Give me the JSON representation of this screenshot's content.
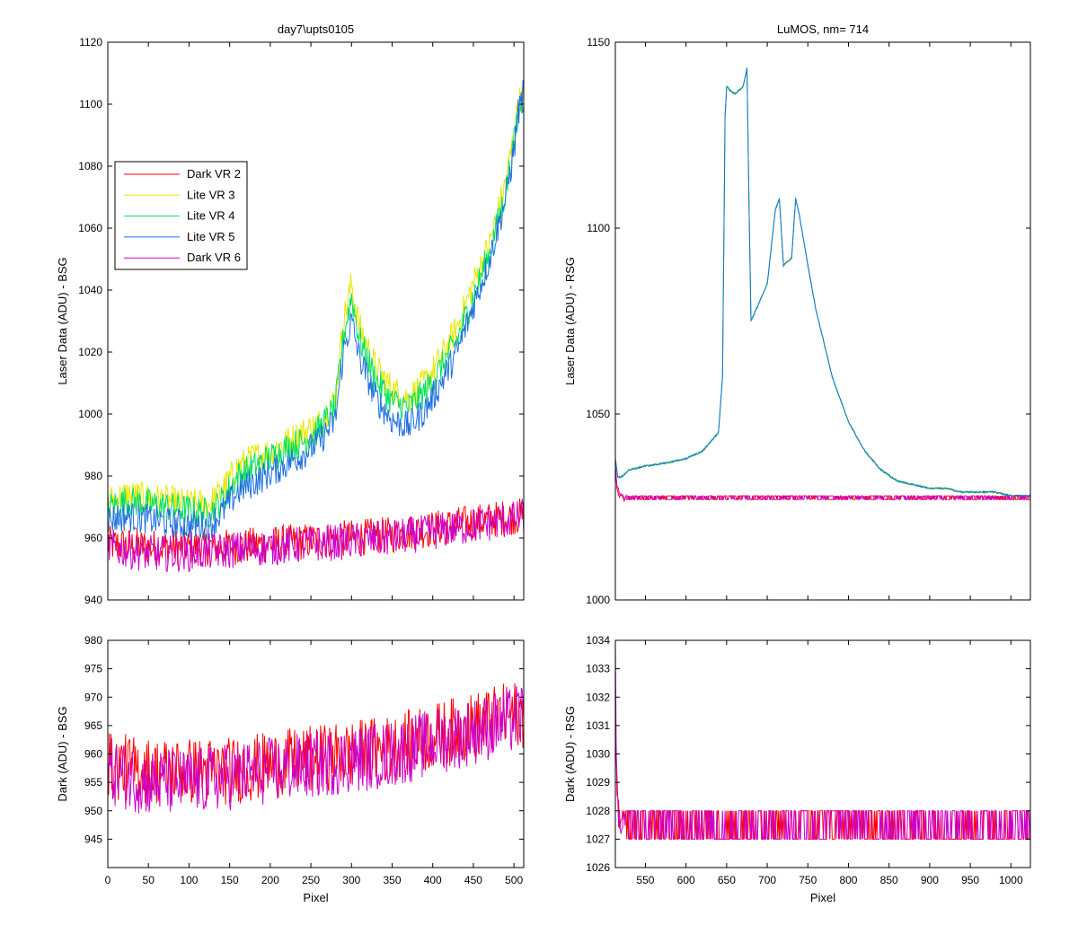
{
  "figure": {
    "background": "#ffffff"
  },
  "chart_data": [
    {
      "id": "bsg_laser",
      "type": "line",
      "title": "day7\\upts0105",
      "xlabel": "",
      "ylabel": "Laser Data (ADU) - BSG",
      "xlim": [
        0,
        512
      ],
      "ylim": [
        940,
        1120
      ],
      "xticks": [
        0,
        50,
        100,
        150,
        200,
        250,
        300,
        350,
        400,
        450,
        500
      ],
      "yticks": [
        940,
        960,
        980,
        1000,
        1020,
        1040,
        1060,
        1080,
        1100,
        1120
      ],
      "show_xtick_labels": false,
      "legend": {
        "placement": "left"
      },
      "series": [
        {
          "name": "Dark VR 2",
          "color": "#ff0000",
          "x": [
            0,
            50,
            100,
            150,
            200,
            250,
            300,
            350,
            400,
            450,
            500,
            512
          ],
          "y": [
            958,
            957,
            957,
            957,
            958,
            959,
            960,
            961,
            963,
            965,
            967,
            967
          ]
        },
        {
          "name": "Lite VR 3",
          "color": "#e8e800",
          "x": [
            0,
            25,
            50,
            75,
            100,
            125,
            140,
            160,
            180,
            200,
            220,
            240,
            260,
            280,
            290,
            300,
            310,
            330,
            350,
            370,
            390,
            410,
            430,
            450,
            470,
            490,
            500,
            505,
            512
          ],
          "y": [
            972,
            974,
            973,
            972,
            971,
            971,
            975,
            983,
            986,
            988,
            991,
            994,
            997,
            1005,
            1030,
            1042,
            1028,
            1015,
            1008,
            1005,
            1010,
            1018,
            1028,
            1042,
            1055,
            1075,
            1090,
            1100,
            1103
          ]
        },
        {
          "name": "Lite VR 4",
          "color": "#00e060",
          "x": [
            0,
            25,
            50,
            75,
            100,
            125,
            140,
            160,
            180,
            200,
            220,
            240,
            260,
            280,
            290,
            300,
            310,
            330,
            350,
            370,
            390,
            410,
            430,
            450,
            470,
            490,
            500,
            505,
            512
          ],
          "y": [
            970,
            972,
            971,
            970,
            969,
            968,
            972,
            980,
            983,
            986,
            989,
            991,
            995,
            1002,
            1025,
            1038,
            1024,
            1011,
            1004,
            1002,
            1007,
            1015,
            1024,
            1038,
            1052,
            1072,
            1087,
            1098,
            1102
          ]
        },
        {
          "name": "Lite VR 5",
          "color": "#1e6fe0",
          "x": [
            0,
            25,
            50,
            75,
            100,
            125,
            140,
            160,
            180,
            200,
            220,
            240,
            260,
            280,
            290,
            300,
            310,
            330,
            350,
            370,
            390,
            410,
            430,
            450,
            470,
            490,
            500,
            505,
            512
          ],
          "y": [
            966,
            967,
            966,
            965,
            964,
            964,
            968,
            975,
            978,
            981,
            984,
            987,
            991,
            998,
            1020,
            1030,
            1018,
            1005,
            998,
            996,
            1001,
            1010,
            1020,
            1035,
            1050,
            1070,
            1085,
            1097,
            1104
          ]
        },
        {
          "name": "Dark VR 6",
          "color": "#cc00cc",
          "x": [
            0,
            50,
            100,
            150,
            200,
            250,
            300,
            350,
            400,
            450,
            500,
            512
          ],
          "y": [
            957,
            955,
            955,
            956,
            957,
            958,
            959,
            960,
            962,
            964,
            966,
            967
          ]
        }
      ]
    },
    {
      "id": "rsg_laser",
      "type": "line",
      "title": "LuMOS, nm= 714",
      "xlabel": "",
      "ylabel": "Laser Data (ADU) - RSG",
      "xlim": [
        513,
        1024
      ],
      "ylim": [
        1000,
        1150
      ],
      "xticks": [
        550,
        600,
        650,
        700,
        750,
        800,
        850,
        900,
        950,
        1000
      ],
      "yticks": [
        1000,
        1050,
        1100,
        1150
      ],
      "show_xtick_labels": false,
      "series": [
        {
          "name": "Dark VR 2",
          "color": "#ff0000",
          "x": [
            513,
            515,
            518,
            521,
            525,
            1024
          ],
          "y": [
            1035,
            1030,
            1028,
            1027.5,
            1027,
            1027
          ]
        },
        {
          "name": "Lite VR 3",
          "color": "#e8e800",
          "x": [
            513,
            516,
            520,
            530,
            550,
            580,
            600,
            620,
            640,
            645,
            648,
            650,
            660,
            670,
            675,
            678,
            680,
            690,
            700,
            710,
            715,
            720,
            730,
            735,
            740,
            750,
            760,
            780,
            800,
            820,
            840,
            860,
            880,
            900,
            920,
            940,
            960,
            980,
            1000,
            1024
          ],
          "y": [
            1038,
            1033,
            1033,
            1035,
            1036,
            1037,
            1038,
            1040,
            1045,
            1060,
            1130,
            1138,
            1136,
            1138,
            1143,
            1100,
            1075,
            1080,
            1085,
            1105,
            1108,
            1090,
            1092,
            1108,
            1103,
            1090,
            1078,
            1060,
            1048,
            1040,
            1035,
            1032,
            1031,
            1030,
            1030,
            1029,
            1029,
            1029,
            1028,
            1028
          ]
        },
        {
          "name": "Lite VR 4",
          "color": "#00e060",
          "x": [
            513,
            516,
            520,
            530,
            550,
            580,
            600,
            620,
            640,
            645,
            648,
            650,
            660,
            670,
            675,
            678,
            680,
            690,
            700,
            710,
            715,
            720,
            730,
            735,
            740,
            750,
            760,
            780,
            800,
            820,
            840,
            860,
            880,
            900,
            920,
            940,
            960,
            980,
            1000,
            1024
          ],
          "y": [
            1038,
            1033,
            1033,
            1035,
            1036,
            1037,
            1038,
            1040,
            1045,
            1060,
            1130,
            1138,
            1136,
            1138,
            1143,
            1100,
            1075,
            1080,
            1085,
            1105,
            1108,
            1090,
            1092,
            1108,
            1103,
            1090,
            1078,
            1060,
            1048,
            1040,
            1035,
            1032,
            1031,
            1030,
            1030,
            1029,
            1029,
            1029,
            1028,
            1028
          ]
        },
        {
          "name": "Lite VR 5",
          "color": "#1e6fe0",
          "x": [
            513,
            516,
            520,
            530,
            550,
            580,
            600,
            620,
            640,
            645,
            648,
            650,
            660,
            670,
            675,
            678,
            680,
            690,
            700,
            710,
            715,
            720,
            730,
            735,
            740,
            750,
            760,
            780,
            800,
            820,
            840,
            860,
            880,
            900,
            920,
            940,
            960,
            980,
            1000,
            1024
          ],
          "y": [
            1038,
            1033,
            1033,
            1035,
            1036,
            1037,
            1038,
            1040,
            1045,
            1060,
            1130,
            1138,
            1136,
            1138,
            1143,
            1100,
            1075,
            1080,
            1085,
            1105,
            1108,
            1090,
            1092,
            1108,
            1103,
            1090,
            1078,
            1060,
            1048,
            1040,
            1035,
            1032,
            1031,
            1030,
            1030,
            1029,
            1029,
            1029,
            1028,
            1028
          ]
        },
        {
          "name": "Dark VR 6",
          "color": "#cc00cc",
          "x": [
            513,
            515,
            518,
            521,
            525,
            1024
          ],
          "y": [
            1036,
            1031,
            1028.5,
            1028,
            1027.5,
            1027.5
          ]
        }
      ]
    },
    {
      "id": "bsg_dark",
      "type": "line",
      "title": "",
      "xlabel": "Pixel",
      "ylabel": "Dark (ADU) - BSG",
      "xlim": [
        0,
        512
      ],
      "ylim": [
        940,
        980
      ],
      "xticks": [
        0,
        50,
        100,
        150,
        200,
        250,
        300,
        350,
        400,
        450,
        500
      ],
      "yticks": [
        945,
        950,
        955,
        960,
        965,
        970,
        975,
        980
      ],
      "show_xtick_labels": true,
      "series": [
        {
          "name": "Dark VR 2",
          "color": "#ff0000",
          "x": [
            0,
            50,
            100,
            150,
            200,
            250,
            300,
            350,
            400,
            450,
            500,
            512
          ],
          "y": [
            958,
            957,
            957,
            957,
            958,
            959,
            960,
            961,
            963,
            965,
            967,
            967
          ]
        },
        {
          "name": "Dark VR 6",
          "color": "#cc00cc",
          "x": [
            0,
            50,
            100,
            150,
            200,
            250,
            300,
            350,
            400,
            450,
            500,
            512
          ],
          "y": [
            957,
            955,
            955,
            956,
            957,
            958,
            959,
            960,
            962,
            964,
            966,
            967
          ]
        }
      ]
    },
    {
      "id": "rsg_dark",
      "type": "line",
      "title": "",
      "xlabel": "Pixel",
      "ylabel": "Dark (ADU) - RSG",
      "xlim": [
        513,
        1024
      ],
      "ylim": [
        1026,
        1034
      ],
      "xticks": [
        550,
        600,
        650,
        700,
        750,
        800,
        850,
        900,
        950,
        1000
      ],
      "yticks": [
        1026,
        1027,
        1028,
        1029,
        1030,
        1031,
        1032,
        1033,
        1034
      ],
      "show_xtick_labels": true,
      "series": [
        {
          "name": "Dark VR 2",
          "color": "#ff0000",
          "x": [
            513,
            514,
            515,
            516,
            518,
            520,
            1024
          ],
          "y": [
            1031,
            1030,
            1029,
            1028,
            1027.5,
            1027.5,
            1027.5
          ]
        },
        {
          "name": "Dark VR 6",
          "color": "#cc00cc",
          "x": [
            513,
            514,
            515,
            516,
            518,
            520,
            1024
          ],
          "y": [
            1034,
            1031,
            1029,
            1028,
            1027.5,
            1027.5,
            1027.5
          ]
        }
      ]
    }
  ]
}
